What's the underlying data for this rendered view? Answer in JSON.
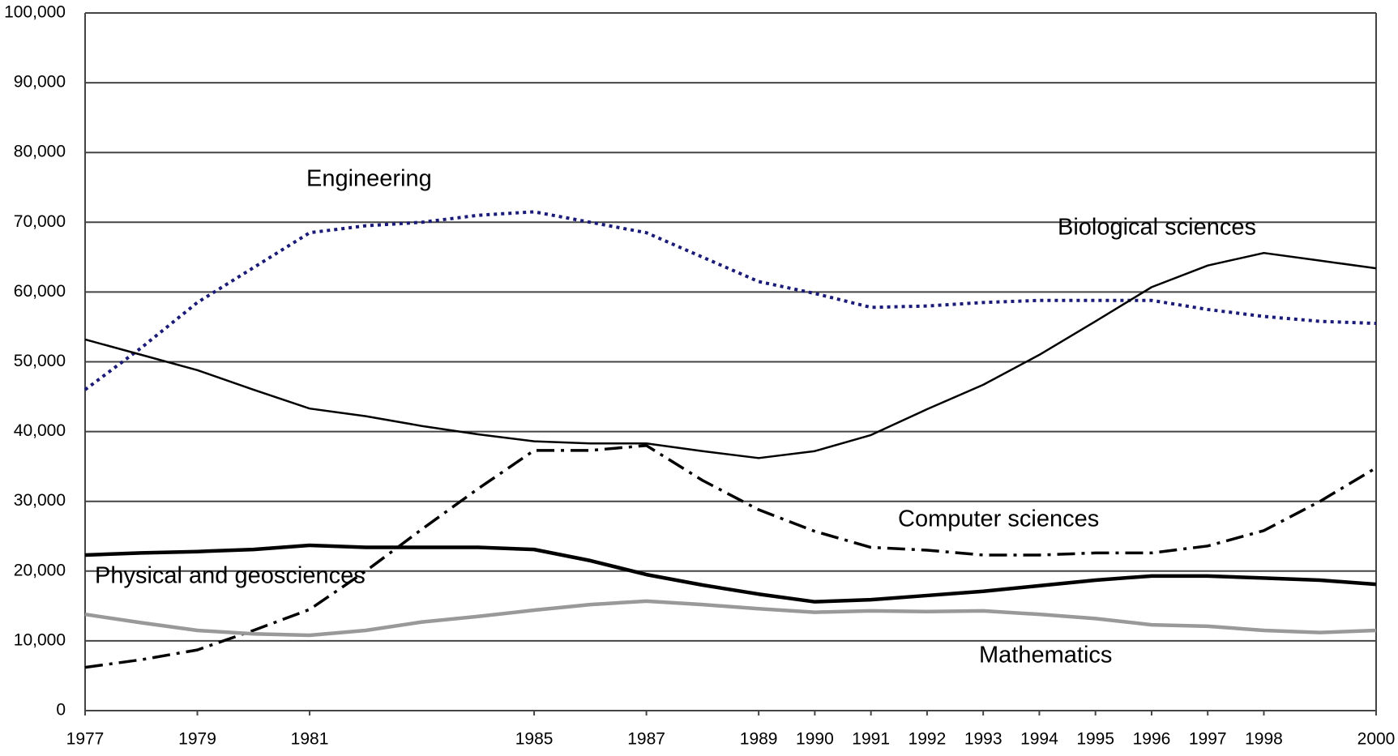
{
  "chart_data": {
    "type": "line",
    "x": [
      1977,
      1978,
      1979,
      1980,
      1981,
      1982,
      1983,
      1984,
      1985,
      1986,
      1987,
      1988,
      1989,
      1990,
      1991,
      1992,
      1993,
      1994,
      1995,
      1996,
      1997,
      1998,
      1999,
      2000
    ],
    "xlim": [
      1977,
      2000
    ],
    "xticks": [
      1977,
      1979,
      1981,
      1985,
      1987,
      1989,
      1990,
      1991,
      1992,
      1993,
      1994,
      1995,
      1996,
      1997,
      1998,
      2000
    ],
    "ylim": [
      0,
      100000
    ],
    "yticks": [
      0,
      {
        "value": 10000,
        "label": "10,000"
      },
      {
        "value": 20000,
        "label": "20,000"
      },
      {
        "value": 30000,
        "label": "30,000"
      },
      {
        "value": 40000,
        "label": "40,000"
      },
      {
        "value": 50000,
        "label": "50,000"
      },
      {
        "value": 60000,
        "label": "60,000"
      },
      {
        "value": 70000,
        "label": "70,000"
      },
      {
        "value": 80000,
        "label": "80,000"
      },
      {
        "value": 90000,
        "label": "90,000"
      },
      {
        "value": 100000,
        "label": "100,000"
      }
    ],
    "grid": true,
    "series": [
      {
        "name": "Engineering",
        "color": "#1a1a78",
        "values": [
          46000,
          52000,
          58500,
          63500,
          68500,
          69500,
          70000,
          71000,
          71500,
          70000,
          68500,
          65000,
          61500,
          59800,
          57800,
          58000,
          58500,
          58800,
          58800,
          58800,
          57500,
          56500,
          55800,
          55500
        ]
      },
      {
        "name": "Biological sciences",
        "color": "#000000",
        "values": [
          53200,
          51000,
          48800,
          46000,
          43300,
          42200,
          40800,
          39600,
          38600,
          38300,
          38300,
          37200,
          36200,
          37200,
          39500,
          43200,
          46700,
          51000,
          55800,
          60700,
          63800,
          65600,
          64500,
          63400
        ]
      },
      {
        "name": "Computer sciences",
        "color": "#000000",
        "values": [
          6200,
          7300,
          8700,
          11500,
          14500,
          20000,
          26000,
          31800,
          37300,
          37300,
          38000,
          33000,
          28800,
          25700,
          23400,
          23000,
          22300,
          22300,
          22600,
          22600,
          23600,
          25800,
          30000,
          34800
        ]
      },
      {
        "name": "Physical and geosciences",
        "color": "#000000",
        "values": [
          22300,
          22600,
          22800,
          23100,
          23700,
          23400,
          23400,
          23400,
          23100,
          21500,
          19500,
          18000,
          16700,
          15600,
          15900,
          16500,
          17100,
          17900,
          18700,
          19300,
          19300,
          19000,
          18700,
          18100
        ]
      },
      {
        "name": "Mathematics",
        "color": "#999999",
        "values": [
          13800,
          12600,
          11500,
          11000,
          10800,
          11500,
          12700,
          13500,
          14400,
          15200,
          15700,
          15200,
          14600,
          14100,
          14300,
          14200,
          14300,
          13800,
          13200,
          12300,
          12100,
          11500,
          11200,
          11500
        ]
      }
    ]
  }
}
